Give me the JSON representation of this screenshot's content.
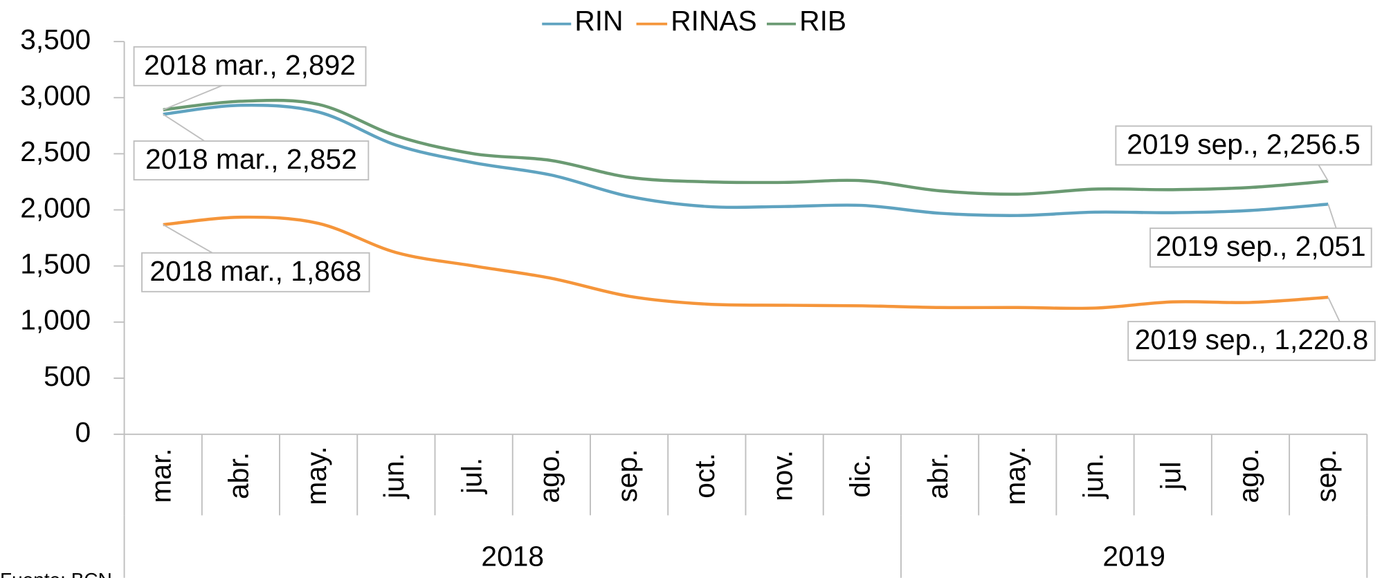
{
  "chart_data": {
    "type": "line",
    "categories": [
      "mar.",
      "abr.",
      "may.",
      "jun.",
      "jul.",
      "ago.",
      "sep.",
      "oct.",
      "nov.",
      "dic.",
      "abr.",
      "may.",
      "jun.",
      "jul",
      "ago.",
      "sep."
    ],
    "groups": [
      {
        "label": "2018",
        "count": 10
      },
      {
        "label": "2019",
        "count": 6
      }
    ],
    "series": [
      {
        "name": "RIN",
        "color": "#5fa3c0",
        "values": [
          2852,
          2932,
          2872,
          2578,
          2420,
          2310,
          2120,
          2030,
          2030,
          2040,
          1970,
          1950,
          1980,
          1975,
          1995,
          2051
        ],
        "value_labels": [
          "2018 mar., 2,852",
          null,
          null,
          null,
          null,
          null,
          null,
          null,
          null,
          null,
          null,
          null,
          null,
          null,
          null,
          "2019 sep., 2,051"
        ]
      },
      {
        "name": "RINAS",
        "color": "#f5953a",
        "values": [
          1868,
          1935,
          1880,
          1620,
          1500,
          1390,
          1230,
          1160,
          1150,
          1145,
          1130,
          1130,
          1125,
          1180,
          1175,
          1220.8
        ],
        "value_labels": [
          "2018 mar., 1,868",
          null,
          null,
          null,
          null,
          null,
          null,
          null,
          null,
          null,
          null,
          null,
          null,
          null,
          null,
          "2019 sep., 1,220.8"
        ]
      },
      {
        "name": "RIB",
        "color": "#6a9a72",
        "values": [
          2892,
          2968,
          2940,
          2660,
          2500,
          2440,
          2290,
          2250,
          2245,
          2260,
          2170,
          2140,
          2185,
          2180,
          2200,
          2256.5
        ],
        "value_labels": [
          "2018 mar., 2,892",
          null,
          null,
          null,
          null,
          null,
          null,
          null,
          null,
          null,
          null,
          null,
          null,
          null,
          null,
          "2019 sep., 2,256.5"
        ]
      }
    ],
    "ylim": [
      0,
      3500
    ],
    "yticks": [
      0,
      500,
      {
        "value": 1000,
        "label": "1,000"
      },
      {
        "value": 1500,
        "label": "1,500"
      },
      {
        "value": 2000,
        "label": "2,000"
      },
      {
        "value": 2500,
        "label": "2,500"
      },
      {
        "value": 3000,
        "label": "3,000"
      },
      {
        "value": 3500,
        "label": "3,500"
      }
    ],
    "legend": "top",
    "source": "Fuente: BCN"
  }
}
